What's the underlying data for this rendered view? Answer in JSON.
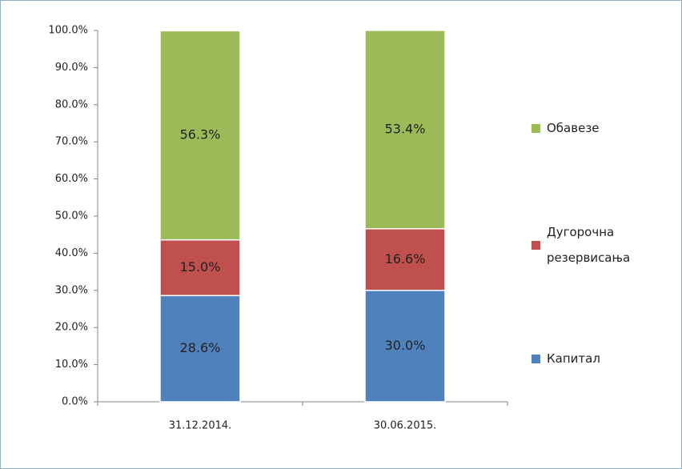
{
  "chart_data": {
    "type": "stacked_bar",
    "categories": [
      "31.12.2014.",
      "30.06.2015."
    ],
    "series": [
      {
        "name": "Капитал",
        "color": "#4f81bd",
        "values": [
          28.6,
          30.0
        ],
        "value_labels": [
          "28.6%",
          "30.0%"
        ]
      },
      {
        "name": "Дугорочна резервисања",
        "color": "#c0504d",
        "values": [
          15.0,
          16.6
        ],
        "value_labels": [
          "15.0%",
          "16.6%"
        ]
      },
      {
        "name": "Обавезе",
        "color": "#9bbb59",
        "values": [
          56.3,
          53.4
        ],
        "value_labels": [
          "56.3%",
          "53.4%"
        ]
      }
    ],
    "ylim": [
      0,
      100
    ],
    "yticks": [
      {
        "value": 0,
        "label": "0.0%"
      },
      {
        "value": 10,
        "label": "10.0%"
      },
      {
        "value": 20,
        "label": "20.0%"
      },
      {
        "value": 30,
        "label": "30.0%"
      },
      {
        "value": 40,
        "label": "40.0%"
      },
      {
        "value": 50,
        "label": "50.0%"
      },
      {
        "value": 60,
        "label": "60.0%"
      },
      {
        "value": 70,
        "label": "70.0%"
      },
      {
        "value": 80,
        "label": "80.0%"
      },
      {
        "value": 90,
        "label": "90.0%"
      },
      {
        "value": 100,
        "label": "100.0%"
      }
    ],
    "legend": "right"
  }
}
